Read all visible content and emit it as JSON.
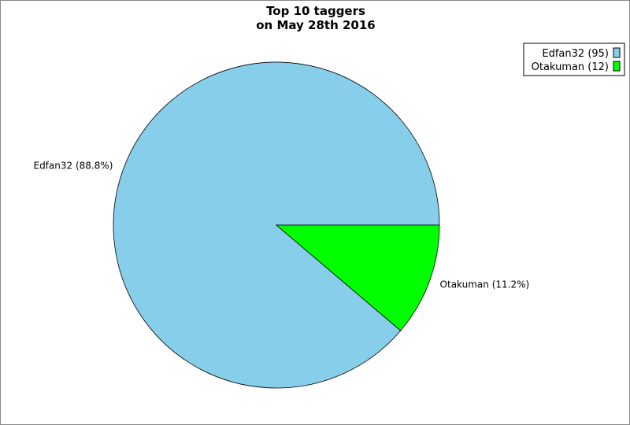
{
  "chart_data": {
    "type": "pie",
    "title": "Top 10 taggers",
    "subtitle": "on May 28th 2016",
    "legend_position": "top-right",
    "slices": [
      {
        "name": "Edfan32",
        "value": 95,
        "percent": 88.8,
        "color": "#87ceeb",
        "label": "Edfan32 (88.8%)",
        "legend": "Edfan32 (95)"
      },
      {
        "name": "Otakuman",
        "value": 12,
        "percent": 11.2,
        "color": "#00ff00",
        "label": "Otakuman (11.2%)",
        "legend": "Otakuman (12)"
      }
    ]
  }
}
